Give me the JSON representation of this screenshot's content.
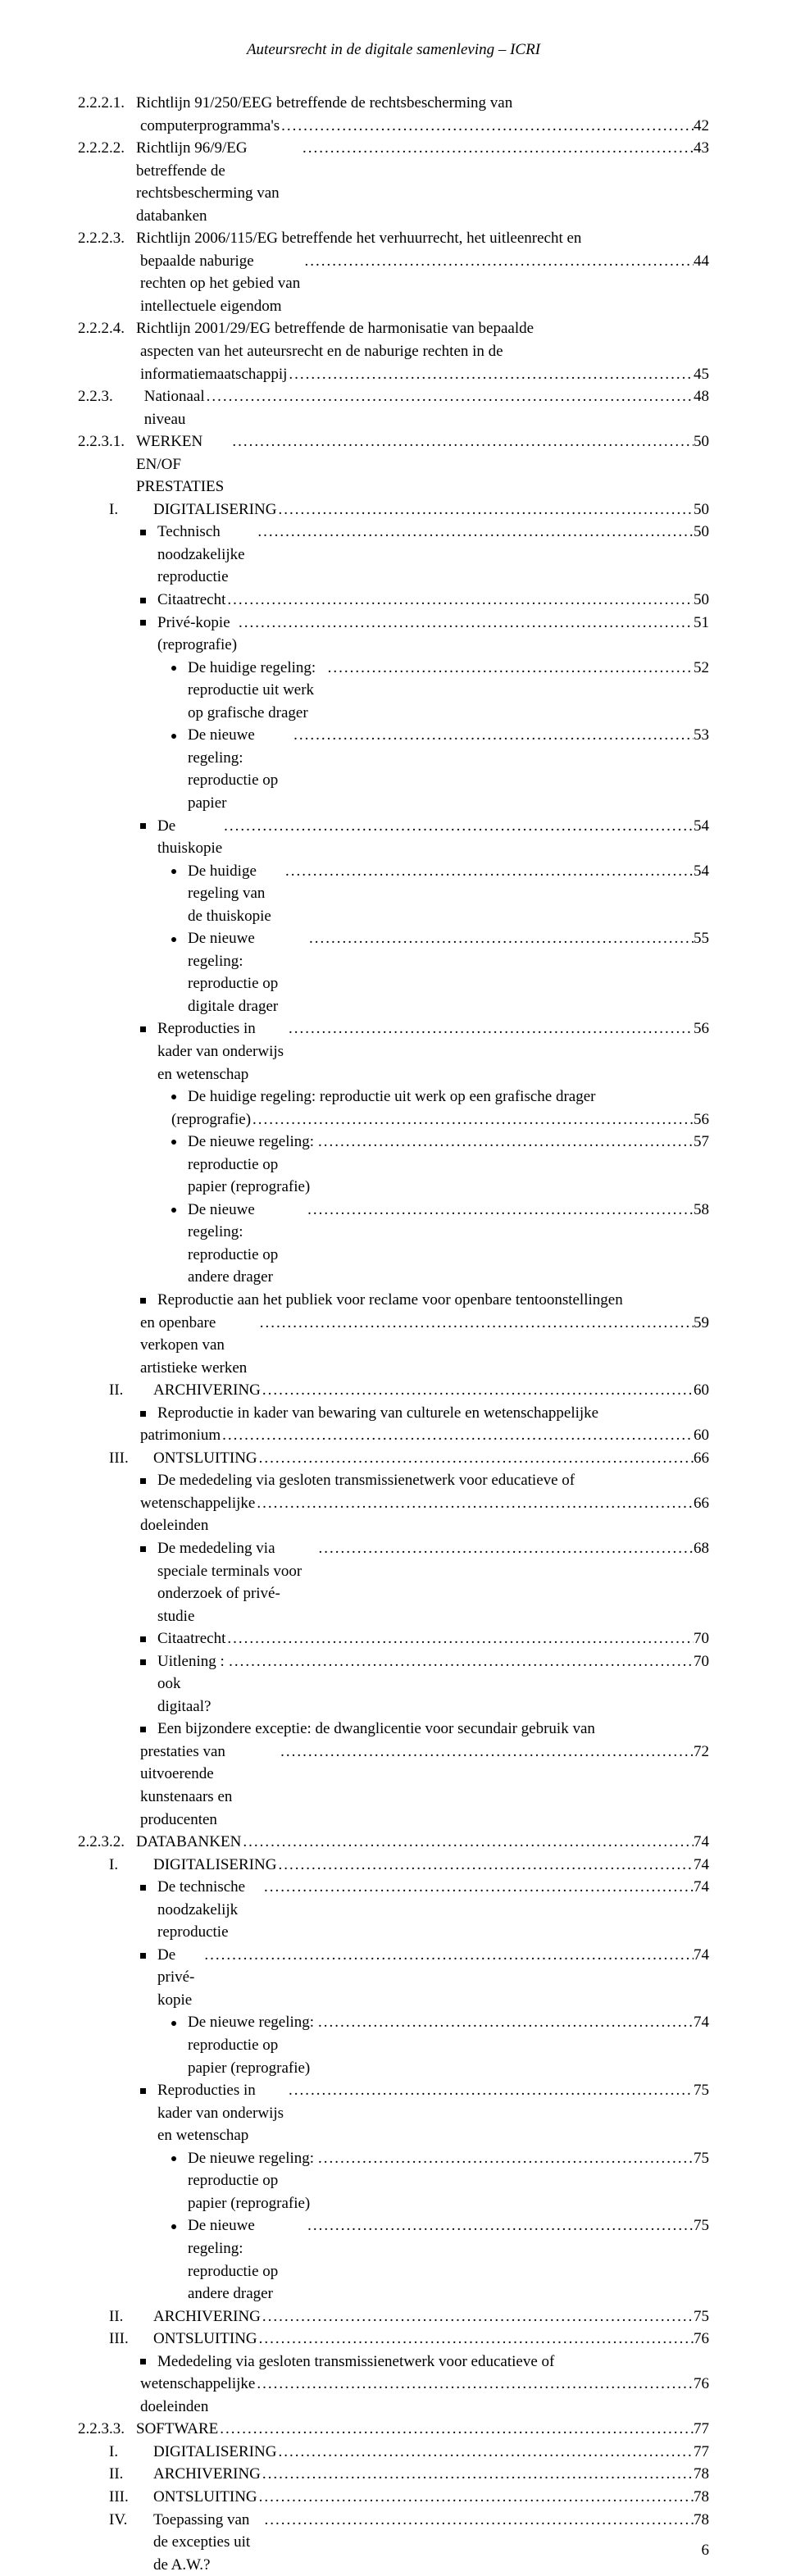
{
  "header": "Auteursrecht in de digitale samenleving – ICRI",
  "page_number": "6",
  "colors": {
    "background": "#ffffff",
    "text": "#000000"
  },
  "typography": {
    "font_family": "Times New Roman",
    "body_fontsize_pt": 14,
    "header_fontsize_pt": 14,
    "header_style": "italic"
  },
  "toc": [
    {
      "type": "num",
      "indent": 0,
      "num": "2.2.2.1.",
      "text": "Richtlijn 91/250/EEG betreffende de rechtsbescherming van",
      "wrap": true
    },
    {
      "type": "wrap",
      "indent": 0,
      "text": "computerprogramma's",
      "page": "42"
    },
    {
      "type": "num",
      "indent": 0,
      "num": "2.2.2.2.",
      "text": "Richtlijn 96/9/EG betreffende de rechtsbescherming van databanken",
      "page": "43"
    },
    {
      "type": "num",
      "indent": 0,
      "num": "2.2.2.3.",
      "text": "Richtlijn 2006/115/EG betreffende het verhuurrecht, het uitleenrecht en",
      "wrap": true
    },
    {
      "type": "wrap",
      "indent": 0,
      "text": "bepaalde naburige rechten op het gebied van intellectuele eigendom",
      "page": "44"
    },
    {
      "type": "num",
      "indent": 0,
      "num": "2.2.2.4.",
      "text": "Richtlijn 2001/29/EG betreffende de harmonisatie van bepaalde",
      "wrap": true
    },
    {
      "type": "wrap",
      "indent": 0,
      "text": "aspecten van het auteursrecht en de naburige rechten in de",
      "wrap": true
    },
    {
      "type": "wrap",
      "indent": 0,
      "text": "informatiemaatschappij",
      "page": "45"
    },
    {
      "type": "num",
      "indent": 0,
      "num": "2.2.3.",
      "text": "Nationaal niveau",
      "page": "48",
      "num_wide": true
    },
    {
      "type": "num",
      "indent": 0,
      "num": "2.2.3.1.",
      "text": "WERKEN EN/OF PRESTATIES",
      "page": "50"
    },
    {
      "type": "roman",
      "indent": 1,
      "num": "I.",
      "text": "DIGITALISERING",
      "page": "50"
    },
    {
      "type": "square",
      "indent": 2,
      "text": "Technisch noodzakelijke reproductie",
      "page": "50"
    },
    {
      "type": "square",
      "indent": 2,
      "text": "Citaatrecht",
      "page": "50"
    },
    {
      "type": "square",
      "indent": 2,
      "text": "Privé-kopie (reprografie)",
      "page": "51"
    },
    {
      "type": "disc",
      "indent": 3,
      "text": "De huidige regeling: reproductie uit werk op grafische drager",
      "page": "52"
    },
    {
      "type": "disc",
      "indent": 3,
      "text": "De nieuwe regeling: reproductie op papier",
      "page": "53"
    },
    {
      "type": "square",
      "indent": 2,
      "text": "De thuiskopie",
      "page": "54"
    },
    {
      "type": "disc",
      "indent": 3,
      "text": "De huidige regeling van de thuiskopie",
      "page": "54"
    },
    {
      "type": "disc",
      "indent": 3,
      "text": "De nieuwe regeling: reproductie op digitale drager",
      "page": "55"
    },
    {
      "type": "square",
      "indent": 2,
      "text": "Reproducties in kader van onderwijs en wetenschap",
      "page": "56"
    },
    {
      "type": "disc",
      "indent": 3,
      "text": "De huidige regeling: reproductie uit werk op een grafische drager",
      "wrap": true
    },
    {
      "type": "wrap3",
      "text": "(reprografie)",
      "page": "56"
    },
    {
      "type": "disc",
      "indent": 3,
      "text": "De nieuwe regeling: reproductie op papier (reprografie)",
      "page": "57"
    },
    {
      "type": "disc",
      "indent": 3,
      "text": "De nieuwe regeling: reproductie op andere drager",
      "page": "58"
    },
    {
      "type": "square",
      "indent": 2,
      "text": "Reproductie aan het publiek voor reclame voor openbare tentoonstellingen",
      "wrap": true
    },
    {
      "type": "wrap2",
      "text": "en openbare verkopen van artistieke werken",
      "page": "59"
    },
    {
      "type": "roman",
      "indent": 1,
      "num": "II.",
      "text": "ARCHIVERING",
      "page": "60"
    },
    {
      "type": "square",
      "indent": 2,
      "text": "Reproductie in kader van bewaring van culturele en wetenschappelijke",
      "wrap": true
    },
    {
      "type": "wrap2",
      "text": "patrimonium",
      "page": "60"
    },
    {
      "type": "roman",
      "indent": 1,
      "num": "III.",
      "text": "ONTSLUITING",
      "page": "66"
    },
    {
      "type": "square",
      "indent": 2,
      "text": "De mededeling via gesloten transmissienetwerk voor educatieve of",
      "wrap": true
    },
    {
      "type": "wrap2",
      "text": "wetenschappelijke doeleinden",
      "page": "66"
    },
    {
      "type": "square",
      "indent": 2,
      "text": "De mededeling via speciale terminals voor onderzoek of privé-studie",
      "page": "68"
    },
    {
      "type": "square",
      "indent": 2,
      "text": "Citaatrecht",
      "page": "70"
    },
    {
      "type": "square",
      "indent": 2,
      "text": "Uitlening : ook digitaal?",
      "page": "70"
    },
    {
      "type": "square",
      "indent": 2,
      "text": "Een bijzondere exceptie: de dwanglicentie voor secundair gebruik van",
      "wrap": true
    },
    {
      "type": "wrap2",
      "text": "prestaties van uitvoerende kunstenaars en producenten",
      "page": "72"
    },
    {
      "type": "num",
      "indent": 0,
      "num": "2.2.3.2.",
      "text": "DATABANKEN",
      "page": "74"
    },
    {
      "type": "roman",
      "indent": 1,
      "num": "I.",
      "text": "DIGITALISERING",
      "page": "74"
    },
    {
      "type": "square",
      "indent": 2,
      "text": "De technische noodzakelijk reproductie",
      "page": "74"
    },
    {
      "type": "square",
      "indent": 2,
      "text": "De privé-kopie",
      "page": "74"
    },
    {
      "type": "disc",
      "indent": 3,
      "text": "De nieuwe regeling: reproductie op papier (reprografie)",
      "page": "74"
    },
    {
      "type": "square",
      "indent": 2,
      "text": "Reproducties in kader van onderwijs en wetenschap",
      "page": "75"
    },
    {
      "type": "disc",
      "indent": 3,
      "text": "De nieuwe regeling: reproductie op papier (reprografie)",
      "page": "75"
    },
    {
      "type": "disc",
      "indent": 3,
      "text": "De nieuwe regeling: reproductie op andere drager",
      "page": "75"
    },
    {
      "type": "roman",
      "indent": 1,
      "num": "II.",
      "text": "ARCHIVERING",
      "page": "75"
    },
    {
      "type": "roman",
      "indent": 1,
      "num": "III.",
      "text": "ONTSLUITING",
      "page": "76"
    },
    {
      "type": "square",
      "indent": 2,
      "text": "Mededeling via gesloten transmissienetwerk voor educatieve of",
      "wrap": true
    },
    {
      "type": "wrap2",
      "text": "wetenschappelijke doeleinden",
      "page": "76"
    },
    {
      "type": "num",
      "indent": 0,
      "num": "2.2.3.3.",
      "text": "SOFTWARE",
      "page": "77"
    },
    {
      "type": "roman",
      "indent": 1,
      "num": "I.",
      "text": "DIGITALISERING",
      "page": "77"
    },
    {
      "type": "roman",
      "indent": 1,
      "num": "II.",
      "text": "ARCHIVERING",
      "page": "78"
    },
    {
      "type": "roman",
      "indent": 1,
      "num": "III.",
      "text": "ONTSLUITING",
      "page": "78"
    },
    {
      "type": "roman",
      "indent": 1,
      "num": "IV.",
      "text": "Toepassing van de excepties uit de A.W.?",
      "page": "78"
    }
  ]
}
